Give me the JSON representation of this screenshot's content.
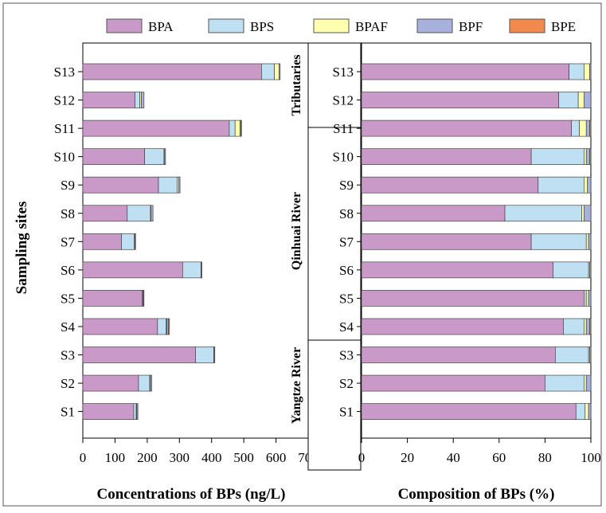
{
  "legend": [
    {
      "name": "BPA",
      "color": "#c99ac7"
    },
    {
      "name": "BPS",
      "color": "#bfe0f2"
    },
    {
      "name": "BPAF",
      "color": "#ffffb0"
    },
    {
      "name": "BPF",
      "color": "#a8b1dc"
    },
    {
      "name": "BPE",
      "color": "#f28a4e"
    }
  ],
  "y_title": "Sampling sites",
  "regions": [
    {
      "label": "Tributaries"
    },
    {
      "label": "Qinhuai River"
    },
    {
      "label": "Yangtze River"
    }
  ],
  "chart_data": [
    {
      "type": "bar",
      "orientation": "horizontal",
      "stacked": true,
      "xlabel": "Concentrations of BPs (ng/L)",
      "ylabel": "Sampling sites",
      "xlim": [
        0,
        700
      ],
      "xticks": [
        0,
        100,
        200,
        300,
        400,
        500,
        600,
        700
      ],
      "categories": [
        "S13",
        "S12",
        "S11",
        "S10",
        "S9",
        "S8",
        "S7",
        "S6",
        "S5",
        "S4",
        "S3",
        "S2",
        "S1"
      ],
      "series": [
        {
          "name": "BPA",
          "values": [
            555,
            162,
            455,
            192,
            235,
            138,
            120,
            310,
            185,
            232,
            350,
            173,
            158
          ]
        },
        {
          "name": "BPS",
          "values": [
            40,
            15,
            18,
            60,
            58,
            72,
            40,
            57,
            2,
            27,
            57,
            35,
            8
          ]
        },
        {
          "name": "BPAF",
          "values": [
            15,
            5,
            15,
            2,
            5,
            2,
            2,
            1,
            1,
            2,
            1,
            2,
            2
          ]
        },
        {
          "name": "BPF",
          "values": [
            3,
            8,
            3,
            3,
            4,
            6,
            2,
            2,
            2,
            5,
            2,
            4,
            3
          ]
        },
        {
          "name": "BPE",
          "values": [
            0,
            0,
            2,
            0,
            0,
            0,
            0,
            0,
            0,
            3,
            0,
            0,
            0
          ]
        }
      ]
    },
    {
      "type": "bar",
      "orientation": "horizontal",
      "stacked": true,
      "xlabel": "Composition of BPs (%)",
      "xlim": [
        0,
        100
      ],
      "xticks": [
        0,
        20,
        40,
        60,
        80,
        100
      ],
      "categories": [
        "S13",
        "S12",
        "S11",
        "S10",
        "S9",
        "S8",
        "S7",
        "S6",
        "S5",
        "S4",
        "S3",
        "S2",
        "S1"
      ],
      "series": [
        {
          "name": "BPA",
          "values": [
            90.5,
            86,
            91.5,
            74,
            77,
            62.5,
            74,
            83.5,
            97,
            88,
            84.5,
            80,
            93.5
          ]
        },
        {
          "name": "BPS",
          "values": [
            6.5,
            8.5,
            3.5,
            23,
            20,
            33.5,
            24,
            15.5,
            1,
            9,
            14.5,
            17,
            4
          ]
        },
        {
          "name": "BPAF",
          "values": [
            2.5,
            2.5,
            3.0,
            1.0,
            1.5,
            1.0,
            1.0,
            0.5,
            1.0,
            1.0,
            0.5,
            1.0,
            1.5
          ]
        },
        {
          "name": "BPF",
          "values": [
            0.5,
            3.0,
            1.5,
            1.5,
            1.5,
            3.0,
            1.0,
            0.5,
            1.0,
            1.5,
            0.5,
            2.0,
            1.0
          ]
        },
        {
          "name": "BPE",
          "values": [
            0,
            0,
            0.5,
            0.5,
            0,
            0,
            0,
            0,
            0,
            0.5,
            0,
            0,
            0
          ]
        }
      ]
    }
  ]
}
